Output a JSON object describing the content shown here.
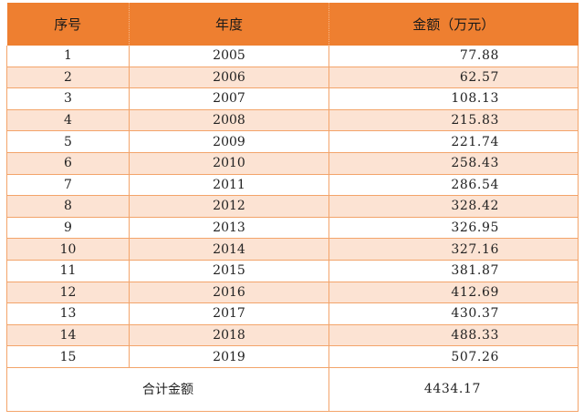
{
  "table": {
    "headers": [
      "序号",
      "年度",
      "金额（万元）"
    ],
    "rows": [
      {
        "no": "1",
        "year": "2005",
        "amount": "77.88"
      },
      {
        "no": "2",
        "year": "2006",
        "amount": "62.57"
      },
      {
        "no": "3",
        "year": "2007",
        "amount": "108.13"
      },
      {
        "no": "4",
        "year": "2008",
        "amount": "215.83"
      },
      {
        "no": "5",
        "year": "2009",
        "amount": "221.74"
      },
      {
        "no": "6",
        "year": "2010",
        "amount": "258.43"
      },
      {
        "no": "7",
        "year": "2011",
        "amount": "286.54"
      },
      {
        "no": "8",
        "year": "2012",
        "amount": "328.42"
      },
      {
        "no": "9",
        "year": "2013",
        "amount": "326.95"
      },
      {
        "no": "10",
        "year": "2014",
        "amount": "327.16"
      },
      {
        "no": "11",
        "year": "2015",
        "amount": "381.87"
      },
      {
        "no": "12",
        "year": "2016",
        "amount": "412.69"
      },
      {
        "no": "13",
        "year": "2017",
        "amount": "430.37"
      },
      {
        "no": "14",
        "year": "2018",
        "amount": "488.33"
      },
      {
        "no": "15",
        "year": "2019",
        "amount": "507.26"
      }
    ],
    "total": {
      "label": "合计金额",
      "amount": "4434.17"
    }
  },
  "colors": {
    "header_bg": "#ee7f30",
    "alt_row_bg": "#fce3d3",
    "border": "#f3a46a"
  }
}
